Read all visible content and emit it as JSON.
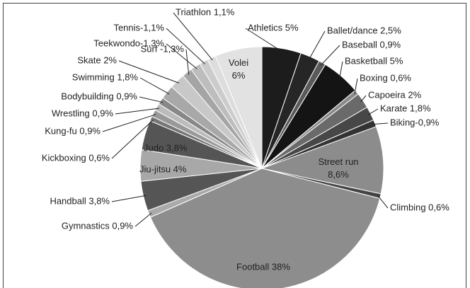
{
  "chart_data": {
    "type": "pie",
    "values": [
      5,
      2.5,
      0.9,
      5,
      0.6,
      2,
      1.8,
      0.9,
      8.6,
      0.6,
      38,
      0.9,
      3.8,
      4,
      3.8,
      0.6,
      0.9,
      0.9,
      0.9,
      1.8,
      2,
      1.3,
      1.3,
      1.1,
      1.1,
      6
    ],
    "value_labels": [
      "Athletics 5%",
      "Ballet/dance 2,5%",
      "Baseball 0,9%",
      "Basketball 5%",
      "Boxing 0,6%",
      "Capoeira 2%",
      "Karate 1,8%",
      "Biking-0,9%",
      "Street run 8,6%",
      "Climbing 0,6%",
      "Football 38%",
      "Gymnastics 0,9%",
      "Handball 3,8%",
      "Jiu-jitsu 4%",
      "Judo 3,8%",
      "Kickboxing 0,6%",
      "Kung-fu 0,9%",
      "Wrestling 0,9%",
      "Bodybuilding 0,9%",
      "Swimming 1,8%",
      "Skate 2%",
      "Surf -1,3%",
      "Teekwondo-1,3%",
      "Tennis-1,1%",
      "Triathlon 1,1%",
      "Volei 6%"
    ],
    "colors": [
      "#1c1c1c",
      "#262626",
      "#5a5a5a",
      "#141414",
      "#8a8a8a",
      "#6a6a6a",
      "#474747",
      "#333333",
      "#8c8c8c",
      "#444444",
      "#8d8d8d",
      "#aaaaaa",
      "#555555",
      "#a8a8a8",
      "#555555",
      "#777777",
      "#999999",
      "#bbbbbb",
      "#888888",
      "#a8a8a8",
      "#c8c8c8",
      "#a5a5a5",
      "#bdbdbd",
      "#cccccc",
      "#dddddd",
      "#e2e2e2"
    ]
  }
}
